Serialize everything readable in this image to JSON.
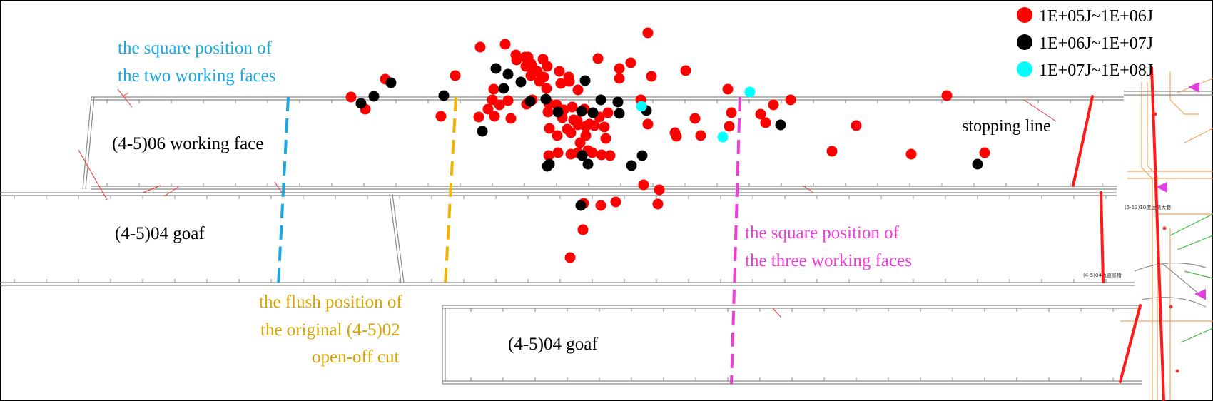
{
  "legend": [
    {
      "label": "1E+05J~1E+06J",
      "color": "#ff0000"
    },
    {
      "label": "1E+06J~1E+07J",
      "color": "#000000"
    },
    {
      "label": "1E+07J~1E+08J",
      "color": "#00ffff"
    }
  ],
  "labels": {
    "working_face_06": "(4-5)06 working face",
    "goaf_04_upper": "(4-5)04 goaf",
    "goaf_04_lower": "(4-5)04 goaf",
    "stopping_line": "stopping line",
    "two_faces_line1": "the square position of",
    "two_faces_line2": "the two working faces",
    "three_faces_line1": "the square position of",
    "three_faces_line2": "the three working faces",
    "flush_line1": "the flush position of",
    "flush_line2": "the original (4-5)02",
    "flush_line3": "open-off cut",
    "map_note_1": "(5-13)10度运输大巷",
    "map_note_2": "(4-5)04轨道顺槽"
  },
  "colors": {
    "cyan_line": "#1aa7e0",
    "magenta_line": "#ee3cd6",
    "gold_line": "#f0b400",
    "event_red": "#ff0000",
    "event_black": "#000000",
    "event_cyan": "#00ffff"
  }
}
